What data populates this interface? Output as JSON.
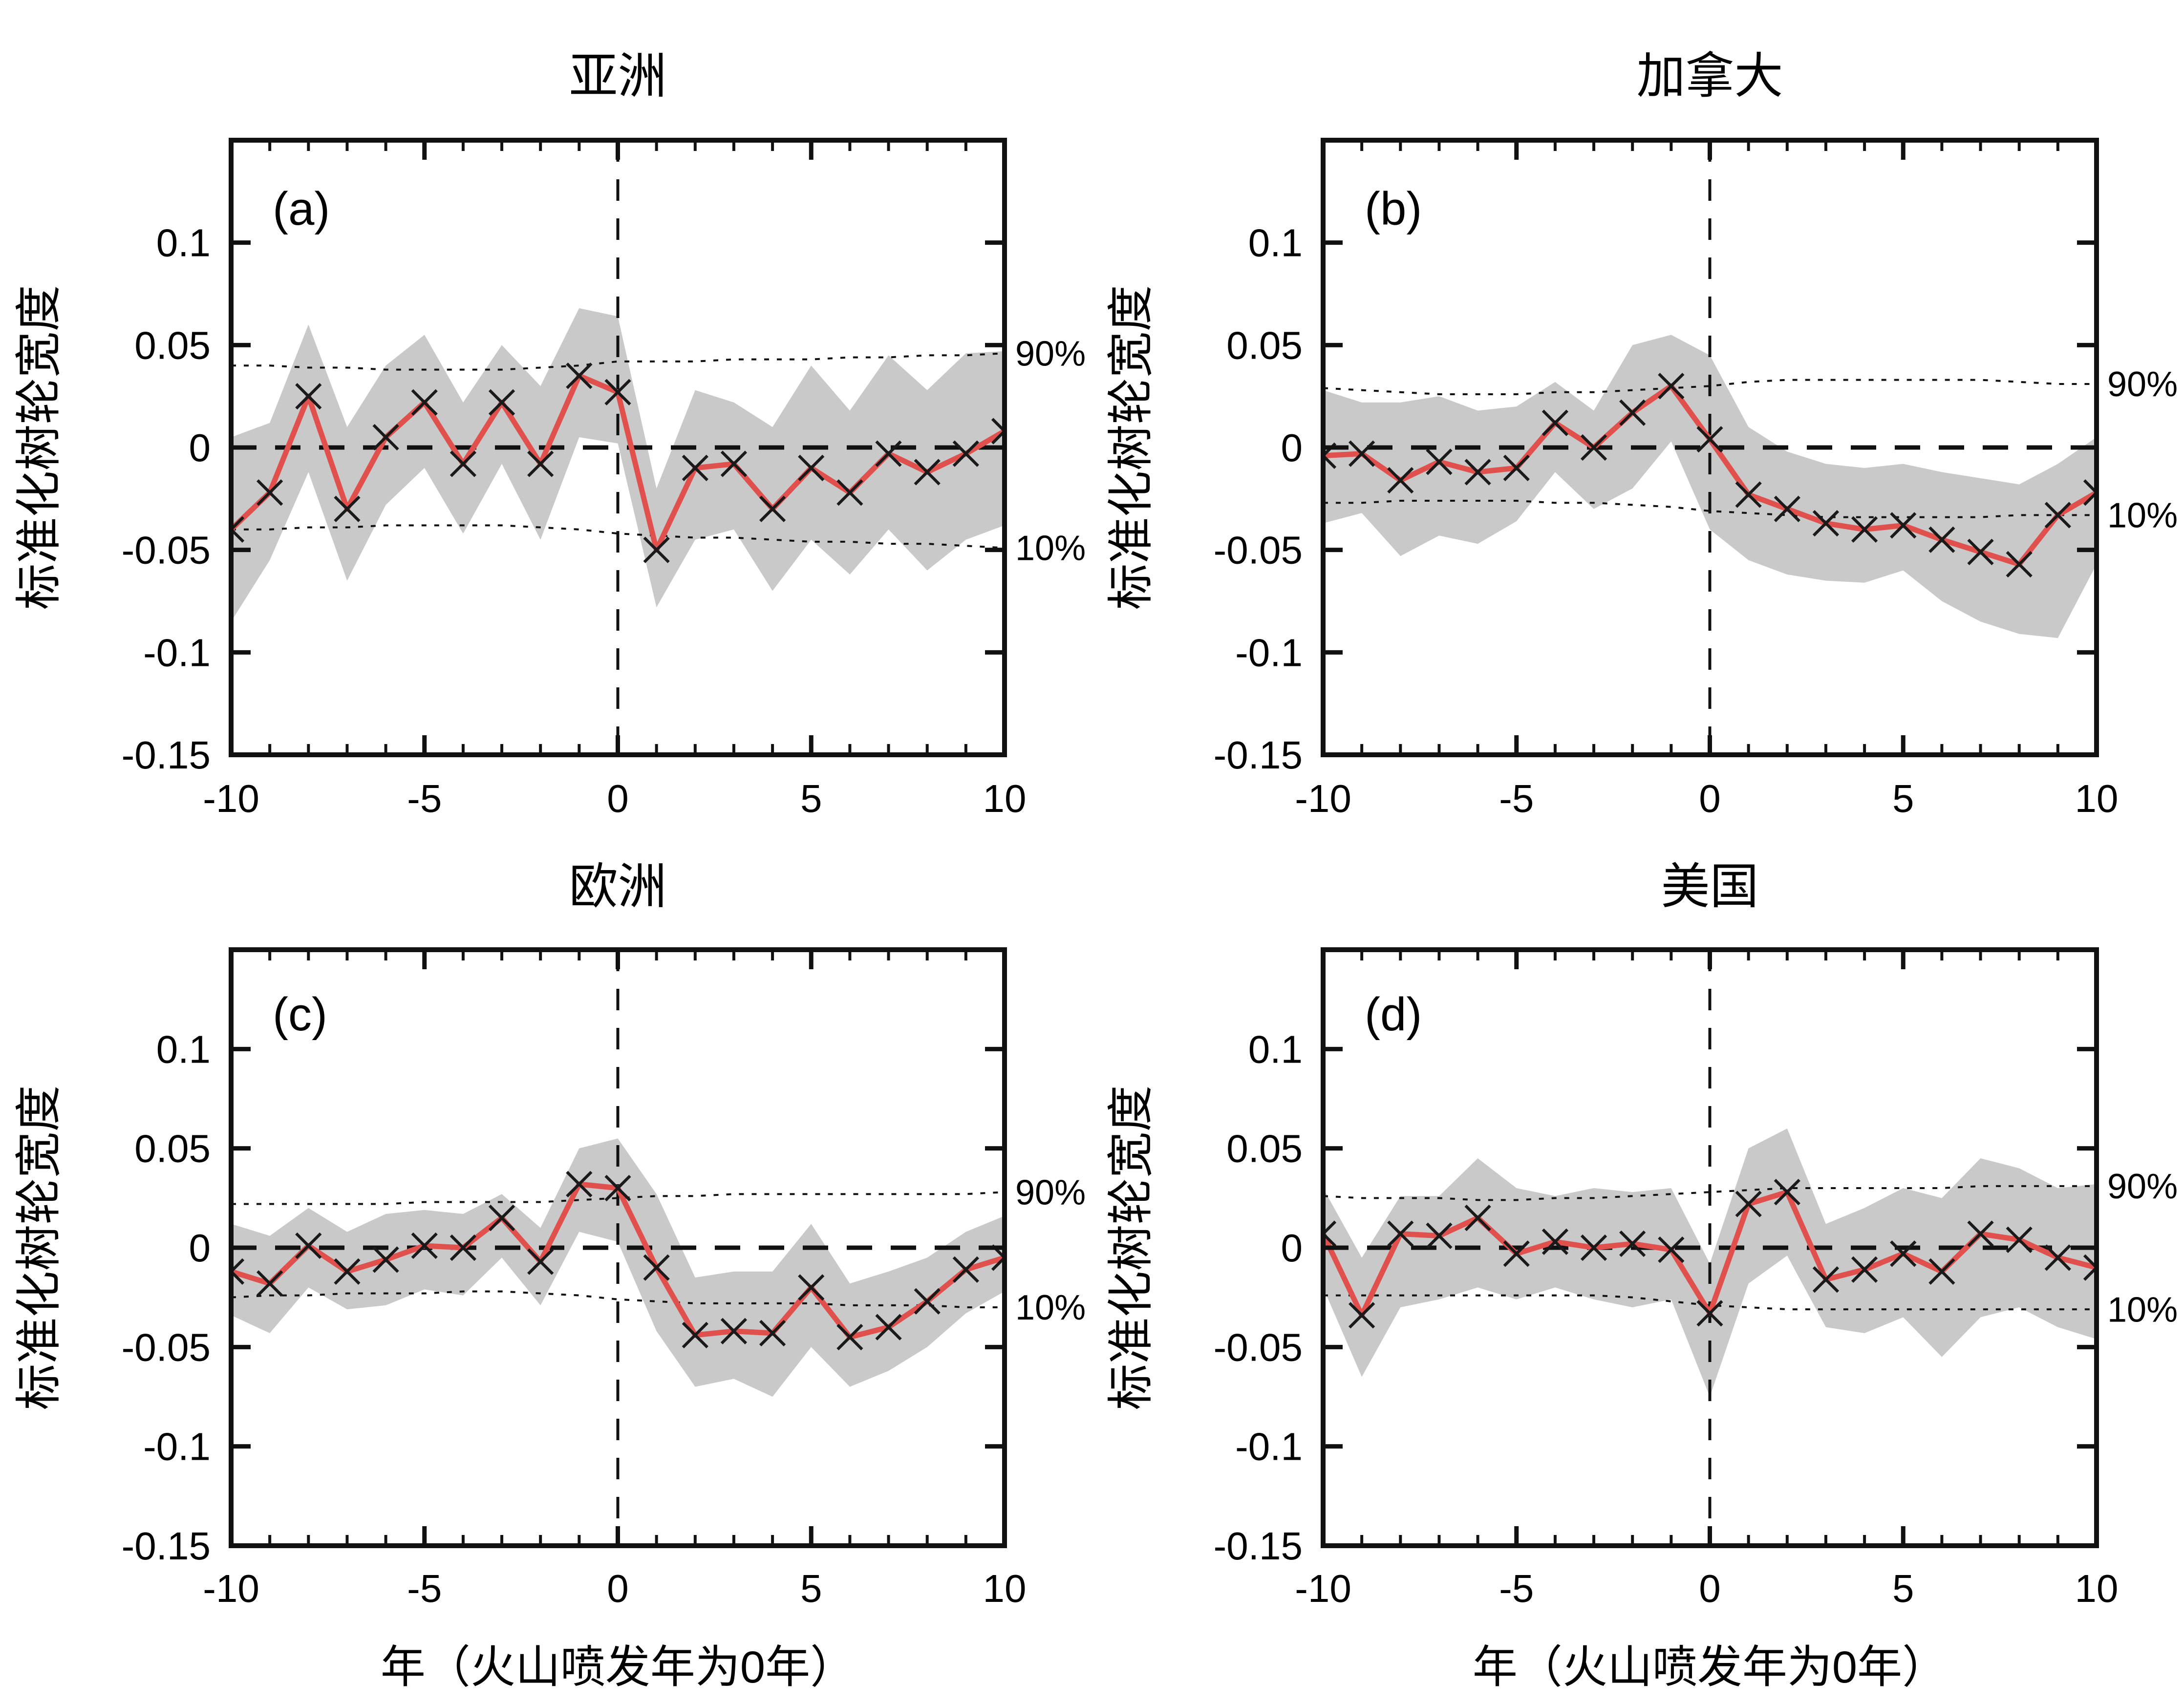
{
  "figure": {
    "ylabel": "标准化树轮宽度",
    "xlabel": "年（火山喷发年为0年）",
    "pct_high_label": "90%",
    "pct_low_label": "10%",
    "colors": {
      "line": "#e0514e",
      "band": "#c9c9c9",
      "axis": "#111111",
      "marker": "#1a1a1a",
      "background": "#ffffff"
    }
  },
  "axes": {
    "xlim": [
      -10,
      10
    ],
    "ylim": [
      -0.15,
      0.15
    ],
    "x_tick_values": [
      -10,
      -5,
      0,
      5,
      10
    ],
    "x_tick_labels": [
      "-10",
      "-5",
      "0",
      "5",
      "10"
    ],
    "x_minor_step": 1,
    "y_tick_values": [
      0.1,
      0.05,
      0,
      -0.05,
      -0.1,
      -0.15
    ],
    "y_tick_labels": [
      "0.1",
      "0.05",
      "0",
      "-0.05",
      "-0.1",
      "-0.15"
    ],
    "grid": false,
    "reference_lines": [
      "y=0 dashed",
      "x=0 dashed"
    ]
  },
  "chart_data": [
    {
      "type": "line",
      "panel_label": "(a)",
      "title": "亚洲",
      "x": [
        -10,
        -9,
        -8,
        -7,
        -6,
        -5,
        -4,
        -3,
        -2,
        -1,
        0,
        1,
        2,
        3,
        4,
        5,
        6,
        7,
        8,
        9,
        10
      ],
      "mean": [
        -0.04,
        -0.022,
        0.025,
        -0.03,
        0.005,
        0.022,
        -0.008,
        0.022,
        -0.008,
        0.035,
        0.027,
        -0.05,
        -0.01,
        -0.008,
        -0.03,
        -0.01,
        -0.022,
        -0.003,
        -0.012,
        -0.003,
        0.008
      ],
      "band_upper": [
        0.005,
        0.012,
        0.06,
        0.01,
        0.04,
        0.055,
        0.022,
        0.05,
        0.03,
        0.068,
        0.064,
        -0.02,
        0.028,
        0.022,
        0.01,
        0.04,
        0.018,
        0.045,
        0.028,
        0.046,
        0.047
      ],
      "band_lower": [
        -0.085,
        -0.055,
        -0.012,
        -0.065,
        -0.028,
        -0.01,
        -0.042,
        -0.008,
        -0.045,
        0.005,
        0.002,
        -0.078,
        -0.045,
        -0.04,
        -0.07,
        -0.045,
        -0.062,
        -0.04,
        -0.06,
        -0.045,
        -0.038
      ],
      "pct90": [
        0.04,
        0.04,
        0.039,
        0.039,
        0.038,
        0.038,
        0.038,
        0.038,
        0.039,
        0.04,
        0.042,
        0.042,
        0.042,
        0.043,
        0.043,
        0.043,
        0.044,
        0.044,
        0.045,
        0.045,
        0.046
      ],
      "pct10": [
        -0.04,
        -0.04,
        -0.039,
        -0.039,
        -0.038,
        -0.038,
        -0.038,
        -0.038,
        -0.039,
        -0.04,
        -0.042,
        -0.043,
        -0.044,
        -0.044,
        -0.045,
        -0.046,
        -0.046,
        -0.047,
        -0.047,
        -0.048,
        -0.049
      ]
    },
    {
      "type": "line",
      "panel_label": "(b)",
      "title": "加拿大",
      "x": [
        -10,
        -9,
        -8,
        -7,
        -6,
        -5,
        -4,
        -3,
        -2,
        -1,
        0,
        1,
        2,
        3,
        4,
        5,
        6,
        7,
        8,
        9,
        10
      ],
      "mean": [
        -0.004,
        -0.003,
        -0.016,
        -0.007,
        -0.012,
        -0.01,
        0.012,
        0.0,
        0.017,
        0.03,
        0.004,
        -0.023,
        -0.03,
        -0.037,
        -0.04,
        -0.038,
        -0.045,
        -0.051,
        -0.057,
        -0.033,
        -0.022
      ],
      "band_upper": [
        0.028,
        0.022,
        0.022,
        0.025,
        0.018,
        0.02,
        0.032,
        0.018,
        0.05,
        0.055,
        0.045,
        0.01,
        -0.002,
        -0.008,
        -0.01,
        -0.008,
        -0.012,
        -0.015,
        -0.018,
        -0.008,
        0.005
      ],
      "band_lower": [
        -0.037,
        -0.032,
        -0.053,
        -0.043,
        -0.047,
        -0.036,
        -0.012,
        -0.03,
        -0.02,
        0.003,
        -0.04,
        -0.055,
        -0.062,
        -0.065,
        -0.066,
        -0.06,
        -0.075,
        -0.085,
        -0.091,
        -0.093,
        -0.057
      ],
      "pct90": [
        0.029,
        0.028,
        0.027,
        0.026,
        0.026,
        0.026,
        0.027,
        0.027,
        0.028,
        0.029,
        0.03,
        0.032,
        0.033,
        0.033,
        0.033,
        0.033,
        0.033,
        0.033,
        0.032,
        0.031,
        0.031
      ],
      "pct10": [
        -0.027,
        -0.027,
        -0.026,
        -0.026,
        -0.026,
        -0.026,
        -0.027,
        -0.027,
        -0.028,
        -0.029,
        -0.031,
        -0.032,
        -0.033,
        -0.034,
        -0.034,
        -0.034,
        -0.034,
        -0.034,
        -0.033,
        -0.033,
        -0.033
      ]
    },
    {
      "type": "line",
      "panel_label": "(c)",
      "title": "欧洲",
      "x": [
        -10,
        -9,
        -8,
        -7,
        -6,
        -5,
        -4,
        -3,
        -2,
        -1,
        0,
        1,
        2,
        3,
        4,
        5,
        6,
        7,
        8,
        9,
        10
      ],
      "mean": [
        -0.012,
        -0.018,
        0.001,
        -0.012,
        -0.006,
        0.001,
        0.0,
        0.015,
        -0.007,
        0.032,
        0.03,
        -0.01,
        -0.044,
        -0.042,
        -0.043,
        -0.02,
        -0.045,
        -0.04,
        -0.027,
        -0.011,
        -0.005
      ],
      "band_upper": [
        0.012,
        0.006,
        0.02,
        0.008,
        0.017,
        0.019,
        0.017,
        0.027,
        0.01,
        0.05,
        0.055,
        0.027,
        -0.015,
        -0.012,
        -0.012,
        0.012,
        -0.018,
        -0.012,
        -0.005,
        0.008,
        0.016
      ],
      "band_lower": [
        -0.034,
        -0.043,
        -0.02,
        -0.031,
        -0.029,
        -0.021,
        -0.024,
        -0.005,
        -0.029,
        0.008,
        0.003,
        -0.042,
        -0.07,
        -0.066,
        -0.075,
        -0.05,
        -0.07,
        -0.062,
        -0.05,
        -0.033,
        -0.022
      ],
      "pct90": [
        0.022,
        0.022,
        0.022,
        0.022,
        0.022,
        0.023,
        0.023,
        0.023,
        0.023,
        0.024,
        0.025,
        0.026,
        0.026,
        0.027,
        0.027,
        0.027,
        0.027,
        0.027,
        0.027,
        0.027,
        0.028
      ],
      "pct10": [
        -0.025,
        -0.024,
        -0.024,
        -0.023,
        -0.023,
        -0.023,
        -0.022,
        -0.022,
        -0.023,
        -0.024,
        -0.026,
        -0.027,
        -0.028,
        -0.028,
        -0.028,
        -0.028,
        -0.029,
        -0.029,
        -0.029,
        -0.03,
        -0.03
      ]
    },
    {
      "type": "line",
      "panel_label": "(d)",
      "title": "美国",
      "x": [
        -10,
        -9,
        -8,
        -7,
        -6,
        -5,
        -4,
        -3,
        -2,
        -1,
        0,
        1,
        2,
        3,
        4,
        5,
        6,
        7,
        8,
        9,
        10
      ],
      "mean": [
        0.007,
        -0.034,
        0.007,
        0.006,
        0.015,
        -0.003,
        0.003,
        0.0,
        0.002,
        -0.001,
        -0.033,
        0.022,
        0.028,
        -0.016,
        -0.011,
        -0.003,
        -0.012,
        0.007,
        0.004,
        -0.005,
        -0.01
      ],
      "band_upper": [
        0.03,
        -0.005,
        0.026,
        0.026,
        0.045,
        0.03,
        0.026,
        0.03,
        0.028,
        0.03,
        -0.008,
        0.05,
        0.06,
        0.012,
        0.02,
        0.03,
        0.025,
        0.045,
        0.04,
        0.03,
        0.032
      ],
      "band_lower": [
        -0.02,
        -0.065,
        -0.03,
        -0.026,
        -0.02,
        -0.026,
        -0.02,
        -0.026,
        -0.03,
        -0.026,
        -0.075,
        -0.018,
        -0.004,
        -0.04,
        -0.043,
        -0.035,
        -0.055,
        -0.035,
        -0.03,
        -0.04,
        -0.046
      ],
      "pct90": [
        0.026,
        0.025,
        0.025,
        0.025,
        0.024,
        0.024,
        0.025,
        0.025,
        0.026,
        0.027,
        0.028,
        0.029,
        0.03,
        0.03,
        0.03,
        0.03,
        0.03,
        0.031,
        0.031,
        0.031,
        0.031
      ],
      "pct10": [
        -0.024,
        -0.024,
        -0.024,
        -0.024,
        -0.024,
        -0.024,
        -0.024,
        -0.024,
        -0.025,
        -0.027,
        -0.029,
        -0.03,
        -0.031,
        -0.031,
        -0.031,
        -0.031,
        -0.031,
        -0.031,
        -0.031,
        -0.031,
        -0.031
      ]
    }
  ]
}
